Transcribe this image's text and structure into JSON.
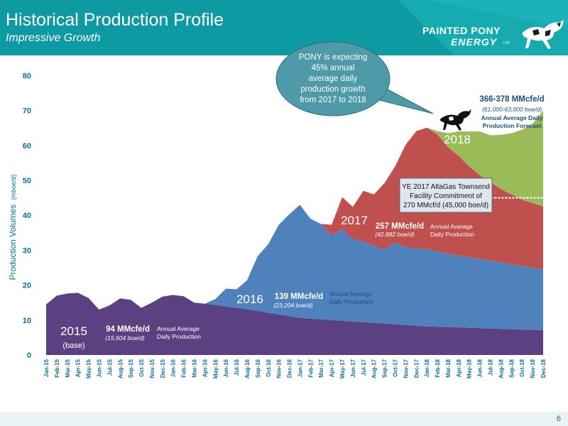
{
  "header": {
    "title": "Historical Production Profile",
    "subtitle": "Impressive Growth",
    "logo_line1": "PAINTED PONY",
    "logo_line2": "ENERGY",
    "logo_ltd": "LTD"
  },
  "page_number": "6",
  "colors": {
    "header_teal": "#0d9aa2",
    "base_2015": "#5b4181",
    "growth_2016": "#4f81bd",
    "growth_2017": "#c0504d",
    "growth_2018": "#9bbb59",
    "callout": "#4f9aa8",
    "axis_text": "#0d6e9e"
  },
  "callout": {
    "text_lines": [
      "PONY is expecting",
      "45% annual",
      "average daily",
      "production growth",
      "from 2017 to 2018"
    ]
  },
  "annotations": {
    "label_2015": "2015",
    "label_2015_sub": "(base)",
    "label_2015_value": "94 MMcfe/d",
    "label_2015_boe": "(15,604 boe/d)",
    "label_2015_desc1": "Annual Average",
    "label_2015_desc2": "Daily Production",
    "label_2016": "2016",
    "label_2016_value": "139 MMcfe/d",
    "label_2016_boe": "(23,204 boe/d)",
    "label_2016_desc1": "Annual Average",
    "label_2016_desc2": "Daily Production",
    "label_2017": "2017",
    "label_2017_value": "257 MMcfe/d",
    "label_2017_boe": "(42,882 boe/d)",
    "label_2017_desc1": "Annual Average",
    "label_2017_desc2": "Daily Production",
    "label_2018": "2018",
    "label_2018_value": "366-378 MMcfe/d",
    "label_2018_boe": "(61,000-63,000 boe/d)",
    "label_2018_desc1": "Annual Average Daily",
    "label_2018_desc2": "Production Forecast",
    "facility_line1": "YE 2017 AltaGas Townsend",
    "facility_line2": "Facility Commitment of",
    "facility_line3": "270 MMcf/d (45,000 boe/d)"
  },
  "chart_data": {
    "type": "area",
    "stacked": true,
    "ylabel": "Production Volumes",
    "ylabel_unit": "(mboe/d)",
    "ylim": [
      0,
      80
    ],
    "yticks": [
      0,
      10,
      20,
      30,
      40,
      50,
      60,
      70,
      80
    ],
    "grid": false,
    "facility_commitment": 45,
    "x": [
      "Jan-15",
      "Feb-15",
      "Mar-15",
      "Apr-15",
      "May-15",
      "Jun-15",
      "Jul-15",
      "Aug-15",
      "Sep-15",
      "Oct-15",
      "Nov-15",
      "Dec-15",
      "Jan-16",
      "Feb-16",
      "Mar-16",
      "Apr-16",
      "May-16",
      "Jun-16",
      "Jul-16",
      "Aug-16",
      "Sep-16",
      "Oct-16",
      "Nov-16",
      "Dec-16",
      "Jan-17",
      "Feb-17",
      "Mar-17",
      "Apr-17",
      "May-17",
      "Jun-17",
      "Jul-17",
      "Aug-17",
      "Sep-17",
      "Oct-17",
      "Nov-17",
      "Dec-17",
      "Jan-18",
      "Feb-18",
      "Mar-18",
      "Apr-18",
      "May-18",
      "Jun-18",
      "Jul-18",
      "Aug-18",
      "Sep-18",
      "Oct-18",
      "Nov-18",
      "Dec-18"
    ],
    "series": [
      {
        "name": "2015",
        "values": [
          14.5,
          17.0,
          17.6,
          17.8,
          16.3,
          13.0,
          14.2,
          16.2,
          15.8,
          13.5,
          15.0,
          16.7,
          17.2,
          16.8,
          15.0,
          14.7,
          14.3,
          13.9,
          13.5,
          13.1,
          12.6,
          12.1,
          11.6,
          11.1,
          10.6,
          10.4,
          10.2,
          10.0,
          9.8,
          9.6,
          9.4,
          9.2,
          9.0,
          8.8,
          8.6,
          8.4,
          8.2,
          8.1,
          8.0,
          7.9,
          7.8,
          7.7,
          7.6,
          7.5,
          7.4,
          7.3,
          7.2,
          7.1
        ]
      },
      {
        "name": "2016",
        "values": [
          0,
          0,
          0,
          0,
          0,
          0,
          0,
          0,
          0,
          0,
          0,
          0,
          0,
          0,
          0,
          0,
          1.7,
          5.1,
          5.3,
          8.3,
          15.7,
          19.6,
          25.7,
          29.2,
          32.4,
          28.6,
          27.3,
          24.3,
          26.2,
          23.6,
          23.1,
          22.0,
          21.2,
          23.5,
          22.2,
          22.1,
          22.1,
          21.5,
          21.0,
          20.6,
          20.2,
          19.8,
          19.4,
          19.0,
          18.6,
          18.2,
          17.8,
          17.4
        ]
      },
      {
        "name": "2017",
        "values": [
          0,
          0,
          0,
          0,
          0,
          0,
          0,
          0,
          0,
          0,
          0,
          0,
          0,
          0,
          0,
          0,
          0,
          0,
          0,
          0,
          0,
          0,
          0,
          0,
          0,
          0,
          0,
          3.0,
          9.2,
          9.2,
          14.5,
          14.8,
          19.0,
          21.7,
          29.4,
          33.6,
          34.8,
          33.5,
          30.5,
          28.5,
          26.0,
          24.0,
          22.5,
          21.0,
          20.0,
          19.0,
          18.5,
          18.0
        ]
      },
      {
        "name": "2018",
        "values": [
          0,
          0,
          0,
          0,
          0,
          0,
          0,
          0,
          0,
          0,
          0,
          0,
          0,
          0,
          0,
          0,
          0,
          0,
          0,
          0,
          0,
          0,
          0,
          0,
          0,
          0,
          0,
          0,
          0,
          0,
          0,
          0,
          0,
          0,
          0,
          0,
          0,
          1.0,
          4.0,
          7.0,
          10.0,
          12.5,
          13.4,
          15.5,
          17.5,
          20.0,
          22.7,
          27.5
        ]
      }
    ]
  }
}
